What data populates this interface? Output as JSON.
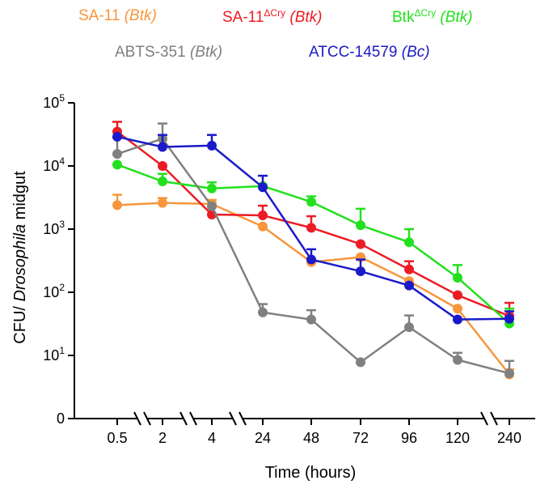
{
  "chart_data": {
    "type": "line",
    "title": "",
    "xlabel": "Time (hours)",
    "ylabel": {
      "prefix": "CFU/ ",
      "italic": "Drosophila",
      "suffix": " midgut"
    },
    "yscale": "log",
    "ylim": [
      1,
      100000
    ],
    "y_ticks": [
      {
        "base": "0",
        "exp": ""
      },
      {
        "base": "10",
        "exp": "1"
      },
      {
        "base": "10",
        "exp": "2"
      },
      {
        "base": "10",
        "exp": "3"
      },
      {
        "base": "10",
        "exp": "4"
      },
      {
        "base": "10",
        "exp": "5"
      }
    ],
    "x": [
      "0.5",
      "2",
      "4",
      "24",
      "48",
      "72",
      "96",
      "120",
      "240"
    ],
    "axis_breaks_after_index": [
      0,
      1,
      2,
      7
    ],
    "legend_placement": "top",
    "series": [
      {
        "name": "SA-11",
        "strain_prefix": "SA-11",
        "strain_sup": "",
        "host": "(Btk)",
        "color": "#f7963c",
        "values": [
          2400,
          2600,
          2500,
          1100,
          300,
          360,
          150,
          55,
          5
        ],
        "errors": [
          3500,
          3100,
          2900,
          null,
          null,
          null,
          null,
          null,
          6
        ]
      },
      {
        "name": "SA-11ΔCry",
        "strain_prefix": "SA-11",
        "strain_sup": "ΔCry",
        "host": "(Btk)",
        "color": "#ec1c24",
        "values": [
          35000,
          10000,
          1700,
          1650,
          1050,
          580,
          230,
          90,
          42
        ],
        "errors": [
          50000,
          null,
          null,
          2350,
          1600,
          null,
          310,
          null,
          68
        ]
      },
      {
        "name": "BtkΔCry",
        "strain_prefix": "Btk",
        "strain_sup": "ΔCry",
        "host": "(Btk)",
        "color": "#22e01e",
        "values": [
          10500,
          5700,
          4400,
          4800,
          2700,
          1150,
          620,
          170,
          32
        ],
        "errors": [
          null,
          7500,
          5500,
          null,
          3300,
          2100,
          1000,
          270,
          55
        ]
      },
      {
        "name": "ABTS-351",
        "strain_prefix": "ABTS-351",
        "strain_sup": "",
        "host": "(Btk)",
        "color": "#808080",
        "values": [
          15500,
          27000,
          2300,
          48,
          37,
          7.8,
          28,
          8.5,
          5.2
        ],
        "errors": [
          28000,
          47000,
          null,
          65,
          52,
          null,
          43,
          11,
          8.2
        ]
      },
      {
        "name": "ATCC-14579",
        "strain_prefix": "ATCC-14579",
        "strain_sup": "",
        "host": "(Bc)",
        "color": "#1a1ac8",
        "values": [
          29000,
          20000,
          21000,
          4600,
          330,
          215,
          128,
          37,
          38
        ],
        "errors": [
          null,
          31000,
          31000,
          7000,
          480,
          330,
          null,
          null,
          50
        ]
      }
    ]
  }
}
